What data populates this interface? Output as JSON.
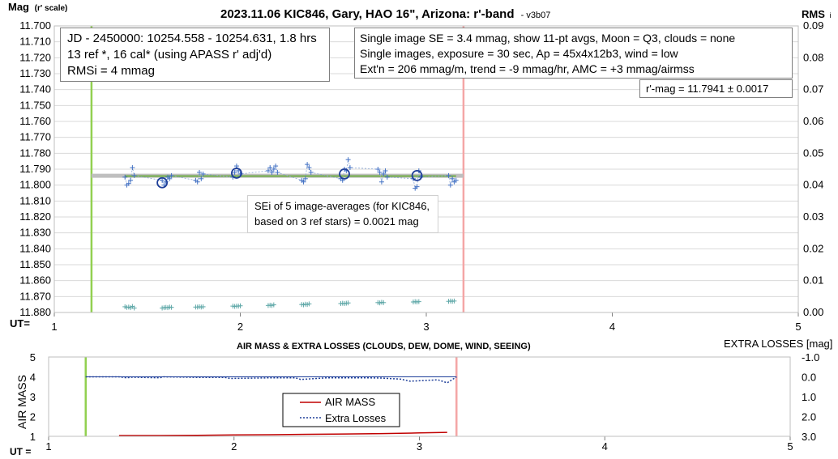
{
  "chart_data": [
    {
      "type": "scatter",
      "title": "2023.11.06 KIC846, Gary, HAO 16\", Arizona: r'-band",
      "version": "- v3b07",
      "ylabel": "Mag",
      "ylabel_suffix": "(r' scale)",
      "y2label": "RMS",
      "y2label_suffix": "i",
      "xlabel": "UT=",
      "xlim": [
        1,
        5
      ],
      "ylim": [
        11.7,
        11.88
      ],
      "y_reversed": true,
      "y2lim": [
        0.0,
        0.09
      ],
      "x_ticks": [
        "1",
        "2",
        "3",
        "4",
        "5"
      ],
      "y_ticks": [
        "11.700",
        "11.710",
        "11.720",
        "11.730",
        "11.740",
        "11.750",
        "11.760",
        "11.770",
        "11.780",
        "11.790",
        "11.800",
        "11.810",
        "11.820",
        "11.830",
        "11.840",
        "11.850",
        "11.860",
        "11.870",
        "11.880"
      ],
      "y2_ticks": [
        "0.09",
        "0.08",
        "0.07",
        "0.06",
        "0.05",
        "0.04",
        "0.03",
        "0.02",
        "0.01",
        "0.00"
      ],
      "grid": true,
      "vertical_markers": [
        {
          "x": 1.2,
          "color": "#92d050"
        },
        {
          "x": 3.2,
          "color": "#f4a6a6"
        }
      ],
      "series": [
        {
          "marker": "plus",
          "color": "#4472c4",
          "x": [
            1.38,
            1.39,
            1.4,
            1.41,
            1.42,
            1.43,
            1.58,
            1.59,
            1.6,
            1.61,
            1.62,
            1.63,
            1.76,
            1.77,
            1.78,
            1.79,
            1.8,
            1.96,
            1.97,
            1.98,
            1.99,
            2.0,
            2.15,
            2.16,
            2.17,
            2.18,
            2.19,
            2.2,
            2.33,
            2.34,
            2.35,
            2.36,
            2.37,
            2.38,
            2.54,
            2.55,
            2.56,
            2.57,
            2.58,
            2.59,
            2.74,
            2.75,
            2.76,
            2.77,
            2.78,
            2.79,
            2.93,
            2.94,
            2.95,
            2.96,
            2.97,
            3.12,
            3.13,
            3.14,
            3.15,
            3.16
          ],
          "y": [
            11.795,
            11.8,
            11.799,
            11.797,
            11.789,
            11.794,
            11.797,
            11.8,
            11.798,
            11.795,
            11.796,
            11.794,
            11.797,
            11.798,
            11.792,
            11.796,
            11.793,
            11.795,
            11.792,
            11.788,
            11.791,
            11.793,
            11.791,
            11.789,
            11.792,
            11.79,
            11.788,
            11.792,
            11.797,
            11.798,
            11.796,
            11.787,
            11.789,
            11.792,
            11.796,
            11.797,
            11.79,
            11.791,
            11.784,
            11.789,
            11.79,
            11.792,
            11.798,
            11.793,
            11.791,
            11.795,
            11.796,
            11.802,
            11.801,
            11.791,
            11.795,
            11.794,
            11.8,
            11.796,
            11.798,
            11.797
          ]
        },
        {
          "marker": "circle",
          "color": "#1f3f99",
          "x": [
            1.58,
            1.98,
            2.56,
            2.95
          ],
          "y": [
            11.7985,
            11.7925,
            11.793,
            11.794
          ]
        },
        {
          "marker": "plus",
          "color": "#5fa8a8",
          "axis": "y2",
          "x": [
            1.38,
            1.39,
            1.4,
            1.41,
            1.42,
            1.43,
            1.58,
            1.59,
            1.6,
            1.61,
            1.62,
            1.63,
            1.76,
            1.77,
            1.78,
            1.79,
            1.8,
            1.96,
            1.97,
            1.98,
            1.99,
            2.0,
            2.15,
            2.16,
            2.17,
            2.18,
            2.33,
            2.34,
            2.35,
            2.36,
            2.37,
            2.54,
            2.55,
            2.56,
            2.57,
            2.58,
            2.74,
            2.75,
            2.76,
            2.77,
            2.93,
            2.94,
            2.95,
            2.96,
            3.12,
            3.13,
            3.14,
            3.15
          ],
          "y": [
            0.0018,
            0.0016,
            0.0017,
            0.0015,
            0.0019,
            0.0014,
            0.0014,
            0.0015,
            0.0016,
            0.0015,
            0.0017,
            0.0016,
            0.0017,
            0.0017,
            0.0018,
            0.0017,
            0.0018,
            0.002,
            0.0019,
            0.002,
            0.002,
            0.0021,
            0.0022,
            0.0023,
            0.0022,
            0.0024,
            0.0025,
            0.0024,
            0.0026,
            0.0025,
            0.0027,
            0.0028,
            0.0029,
            0.0028,
            0.0029,
            0.003,
            0.0031,
            0.003,
            0.0032,
            0.0031,
            0.0033,
            0.0034,
            0.0033,
            0.0034,
            0.0035,
            0.0036,
            0.0035,
            0.0036
          ]
        }
      ],
      "trend_line": {
        "x": [
          1.38,
          3.16
        ],
        "y": [
          11.7943,
          11.7943
        ],
        "color": "#70ad47"
      },
      "mean_line": {
        "x": [
          1.2,
          3.2
        ],
        "y": [
          11.7941,
          11.7941
        ],
        "color": "#bfbfbf"
      },
      "annotations": {
        "left_box": [
          "JD - 2450000: 10254.558 - 10254.631, 1.8 hrs",
          "13 ref *, 16 cal* (using APASS r' adj'd)",
          "RMSi = 4 mmag"
        ],
        "right_box": [
          "Single image SE = 3.4 mmag, show  11-pt avgs, Moon = Q3, clouds = none",
          "Single images, exposure = 30 sec, Ap = 45x4x12b3, wind = low",
          "Ext'n = 206 mmag/m, trend = -9  mmag/hr, AMC = +3 mmag/airmss"
        ],
        "result_box": "r'-mag = 11.7941 ± 0.0017",
        "sei_box": [
          "SEi of 5 image-averages (for KIC846,",
          "based on 3 ref stars) = 0.0021 mag"
        ]
      }
    },
    {
      "type": "line",
      "title": "AIR MASS & EXTRA LOSSES (CLOUDS, DEW, DOME, WIND, SEEING)",
      "ylabel": "AIR MASS",
      "y2label": "EXTRA LOSSES [mag]",
      "xlabel": "UT =",
      "xlim": [
        1,
        5
      ],
      "ylim": [
        1,
        5
      ],
      "y2lim": [
        -1.0,
        3.0
      ],
      "y2_reversed": true,
      "x_ticks": [
        "1",
        "2",
        "3",
        "4",
        "5"
      ],
      "y_ticks": [
        "5",
        "4",
        "3",
        "2",
        "1"
      ],
      "y2_ticks": [
        "-1.0",
        "0.0",
        "1.0",
        "2.0",
        "3.0"
      ],
      "vertical_markers": [
        {
          "x": 1.2,
          "color": "#92d050"
        },
        {
          "x": 3.2,
          "color": "#f4a6a6"
        }
      ],
      "legend": [
        "AIR MASS",
        "Extra Losses"
      ],
      "series": [
        {
          "name": "AIR MASS",
          "color": "#c00000",
          "x": [
            1.38,
            1.6,
            1.8,
            2.0,
            2.2,
            2.4,
            2.6,
            2.8,
            3.0,
            3.15
          ],
          "y": [
            1.04,
            1.04,
            1.05,
            1.07,
            1.08,
            1.1,
            1.12,
            1.14,
            1.17,
            1.2
          ]
        },
        {
          "name": "Extra Losses",
          "color": "#1f3f99",
          "axis": "y2",
          "x": [
            1.2,
            1.38,
            1.42,
            1.45,
            1.6,
            1.62,
            1.8,
            1.95,
            1.98,
            2.2,
            2.33,
            2.36,
            2.5,
            2.7,
            2.8,
            2.9,
            2.95,
            3.1,
            3.15,
            3.2
          ],
          "y": [
            0.0,
            0.0,
            0.05,
            0.02,
            0.05,
            0.0,
            0.03,
            0.03,
            0.08,
            0.05,
            0.05,
            0.13,
            0.05,
            0.05,
            0.06,
            0.12,
            0.22,
            0.15,
            0.3,
            0.0
          ]
        }
      ]
    }
  ]
}
